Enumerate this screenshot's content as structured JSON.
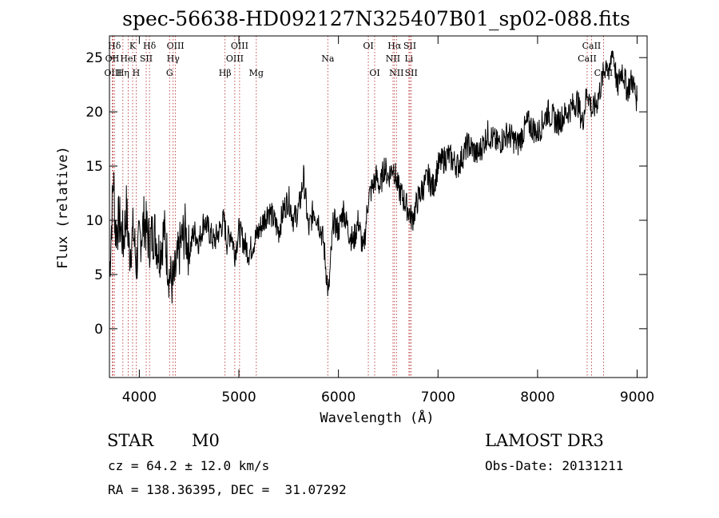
{
  "chart_data": {
    "type": "line",
    "title": "spec-56638-HD092127N325407B01_sp02-088.fits",
    "xlabel": "Wavelength (Å)",
    "ylabel": "Flux (relative)",
    "xlim": [
      3700,
      9100
    ],
    "ylim": [
      -4.5,
      27
    ],
    "x_ticks": [
      4000,
      5000,
      6000,
      7000,
      8000,
      9000
    ],
    "y_ticks": [
      0,
      5,
      10,
      15,
      20,
      25
    ],
    "series": [
      {
        "name": "flux",
        "x": [
          3700,
          3740,
          3760,
          3800,
          3840,
          3870,
          3900,
          3940,
          3970,
          4000,
          4050,
          4100,
          4150,
          4200,
          4250,
          4300,
          4340,
          4380,
          4420,
          4460,
          4500,
          4550,
          4600,
          4650,
          4700,
          4750,
          4800,
          4850,
          4880,
          4920,
          4960,
          5000,
          5050,
          5100,
          5150,
          5200,
          5250,
          5300,
          5350,
          5400,
          5450,
          5500,
          5550,
          5600,
          5620,
          5650,
          5700,
          5750,
          5800,
          5850,
          5880,
          5900,
          5920,
          5950,
          6000,
          6050,
          6100,
          6150,
          6200,
          6250,
          6300,
          6340,
          6380,
          6420,
          6460,
          6500,
          6550,
          6600,
          6650,
          6700,
          6740,
          6800,
          6850,
          6900,
          6950,
          7000,
          7100,
          7200,
          7300,
          7400,
          7500,
          7600,
          7700,
          7800,
          7900,
          8000,
          8100,
          8200,
          8300,
          8400,
          8450,
          8500,
          8550,
          8600,
          8650,
          8700,
          8720,
          8750,
          8780,
          8800,
          8820,
          8850,
          8900,
          8950,
          9000
        ],
        "y": [
          5,
          14,
          9,
          10,
          8,
          11,
          7,
          9,
          6,
          8,
          10,
          8,
          9,
          7,
          9,
          5,
          4,
          6,
          8,
          9,
          7,
          9,
          8,
          10,
          9,
          8,
          9,
          10,
          8,
          9,
          7,
          9,
          8,
          7,
          8,
          9,
          10,
          11,
          10,
          9,
          11,
          12,
          10,
          11,
          12,
          14,
          9,
          11,
          10,
          8,
          5,
          3,
          6,
          10,
          9,
          11,
          9,
          8,
          10,
          7,
          12,
          13,
          14,
          13,
          15,
          14,
          15,
          13,
          12,
          11,
          10,
          12,
          13,
          14,
          13,
          15,
          16,
          15,
          17,
          16,
          18,
          17,
          18,
          17,
          19,
          18,
          20,
          19,
          20,
          21,
          19,
          22,
          20,
          21,
          23,
          25,
          23,
          26,
          24,
          22,
          23,
          24,
          22,
          23,
          21
        ]
      }
    ],
    "line_markers": [
      {
        "label": "Hδ",
        "x": 3750,
        "row": 1
      },
      {
        "label": "OII",
        "x": 3728,
        "row": 2
      },
      {
        "label": "OIII",
        "x": 3735,
        "row": 3
      },
      {
        "label": "K",
        "x": 3933,
        "row": 1
      },
      {
        "label": "HeI",
        "x": 3889,
        "row": 2
      },
      {
        "label": "Hη",
        "x": 3835,
        "row": 3
      },
      {
        "label": "Hδ",
        "x": 4102,
        "row": 1
      },
      {
        "label": "SII",
        "x": 4069,
        "row": 2
      },
      {
        "label": "H",
        "x": 3968,
        "row": 3
      },
      {
        "label": "OIII",
        "x": 4363,
        "row": 1
      },
      {
        "label": "Hγ",
        "x": 4340,
        "row": 2
      },
      {
        "label": "G",
        "x": 4304,
        "row": 3
      },
      {
        "label": "OIII",
        "x": 5007,
        "row": 1
      },
      {
        "label": "OIII",
        "x": 4959,
        "row": 2
      },
      {
        "label": "Hβ",
        "x": 4861,
        "row": 3
      },
      {
        "label": "Mg",
        "x": 5175,
        "row": 3
      },
      {
        "label": "Na",
        "x": 5893,
        "row": 2
      },
      {
        "label": "OI",
        "x": 6300,
        "row": 1
      },
      {
        "label": "OI",
        "x": 6364,
        "row": 3
      },
      {
        "label": "Hα",
        "x": 6563,
        "row": 1
      },
      {
        "label": "NII",
        "x": 6548,
        "row": 2
      },
      {
        "label": "NII",
        "x": 6583,
        "row": 3
      },
      {
        "label": "SII",
        "x": 6717,
        "row": 1
      },
      {
        "label": "Li",
        "x": 6708,
        "row": 2
      },
      {
        "label": "SII",
        "x": 6731,
        "row": 3
      },
      {
        "label": "CaII",
        "x": 8542,
        "row": 1
      },
      {
        "label": "CaII",
        "x": 8498,
        "row": 2
      },
      {
        "label": "CaII",
        "x": 8662,
        "row": 3
      }
    ]
  },
  "info": {
    "object_class": "STAR",
    "subclass": "M0",
    "survey": "LAMOST DR3",
    "redshift": "cz = 64.2 ± 12.0 km/s",
    "obs_date": "Obs-Date: 20131211",
    "coords": "RA = 138.36395, DEC =  31.07292"
  }
}
